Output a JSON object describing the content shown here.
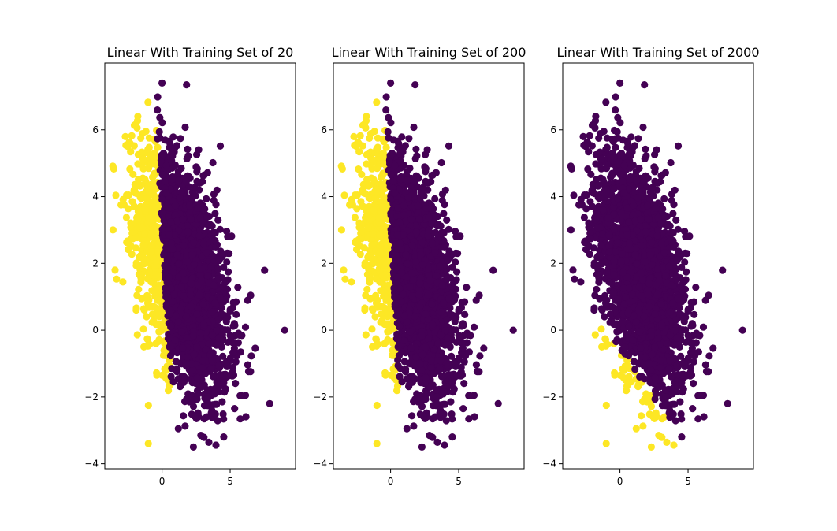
{
  "figure": {
    "background": "#ffffff"
  },
  "colors": {
    "class_0": "#440154",
    "class_1": "#fde725",
    "axis": "#000000"
  },
  "chart_data": [
    {
      "type": "scatter",
      "title": "Linear With Training Set of 20",
      "xlim": [
        -4.2,
        9.8
      ],
      "ylim": [
        -4.15,
        8.0
      ],
      "xticks": [
        0,
        5
      ],
      "xtick_labels": [
        "0",
        "5"
      ],
      "yticks": [
        -4,
        -2,
        0,
        2,
        4,
        6
      ],
      "ytick_labels": [
        "−4",
        "−2",
        "0",
        "2",
        "4",
        "6"
      ],
      "grid": false,
      "legend": "none",
      "boundary": {
        "description_type": "class_1_if_x_less_than",
        "line": [
          [
            -0.5,
            6.9
          ],
          [
            0.8,
            -2.9
          ]
        ]
      },
      "series": [
        {
          "class": 1,
          "color": "#fde725"
        },
        {
          "class": 0,
          "color": "#440154"
        }
      ],
      "extreme_points": [
        {
          "x": 0.0,
          "y": 7.4,
          "class": 0
        },
        {
          "x": 1.8,
          "y": 7.35,
          "class": 0
        },
        {
          "x": -3.6,
          "y": 3.0,
          "class": 1
        },
        {
          "x": 9.0,
          "y": 0.0,
          "class": 0
        },
        {
          "x": 2.3,
          "y": -3.5,
          "class": 0
        },
        {
          "x": 7.9,
          "y": -2.2,
          "class": 0
        },
        {
          "x": -1.0,
          "y": -2.25,
          "class": 1
        },
        {
          "x": 1.2,
          "y": -2.95,
          "class": 0
        }
      ]
    },
    {
      "type": "scatter",
      "title": "Linear With Training Set of 200",
      "xlim": [
        -4.2,
        9.8
      ],
      "ylim": [
        -4.15,
        8.0
      ],
      "xticks": [
        0,
        5
      ],
      "xtick_labels": [
        "0",
        "5"
      ],
      "yticks": [
        -4,
        -2,
        0,
        2,
        4,
        6
      ],
      "ytick_labels": [
        "−4",
        "−2",
        "0",
        "2",
        "4",
        "6"
      ],
      "grid": false,
      "legend": "none",
      "boundary": {
        "description_type": "class_1_if_x_less_than",
        "line": [
          [
            -0.45,
            6.9
          ],
          [
            0.75,
            -2.9
          ]
        ]
      },
      "series": [
        {
          "class": 1,
          "color": "#fde725"
        },
        {
          "class": 0,
          "color": "#440154"
        }
      ],
      "extreme_points": [
        {
          "x": 0.0,
          "y": 7.4,
          "class": 0
        },
        {
          "x": 1.8,
          "y": 7.35,
          "class": 0
        },
        {
          "x": -3.6,
          "y": 3.0,
          "class": 1
        },
        {
          "x": 9.0,
          "y": 0.0,
          "class": 0
        },
        {
          "x": 2.3,
          "y": -3.5,
          "class": 0
        },
        {
          "x": 7.9,
          "y": -2.2,
          "class": 0
        },
        {
          "x": -1.0,
          "y": -2.25,
          "class": 1
        },
        {
          "x": 1.2,
          "y": -2.95,
          "class": 0
        }
      ]
    },
    {
      "type": "scatter",
      "title": "Linear With Training Set of 2000",
      "xlim": [
        -4.2,
        9.8
      ],
      "ylim": [
        -4.15,
        8.0
      ],
      "xticks": [
        0,
        5
      ],
      "xtick_labels": [
        "0",
        "5"
      ],
      "yticks": [
        -4,
        -2,
        0,
        2,
        4,
        6
      ],
      "ytick_labels": [
        "−4",
        "−2",
        "0",
        "2",
        "4",
        "6"
      ],
      "grid": false,
      "legend": "none",
      "boundary": {
        "description_type": "class_1_if_y_less_than_line",
        "line": [
          [
            -3.0,
            1.2
          ],
          [
            4.0,
            -2.9
          ]
        ]
      },
      "series": [
        {
          "class": 1,
          "color": "#fde725"
        },
        {
          "class": 0,
          "color": "#440154"
        }
      ],
      "extreme_points": [
        {
          "x": 0.0,
          "y": 7.4,
          "class": 0
        },
        {
          "x": 1.8,
          "y": 7.35,
          "class": 0
        },
        {
          "x": -3.6,
          "y": 3.0,
          "class": 0
        },
        {
          "x": 9.0,
          "y": 0.0,
          "class": 0
        },
        {
          "x": 2.3,
          "y": -3.5,
          "class": 1
        },
        {
          "x": 7.9,
          "y": -2.2,
          "class": 0
        },
        {
          "x": -1.0,
          "y": -2.25,
          "class": 1
        },
        {
          "x": 1.2,
          "y": -2.95,
          "class": 1
        }
      ]
    }
  ]
}
